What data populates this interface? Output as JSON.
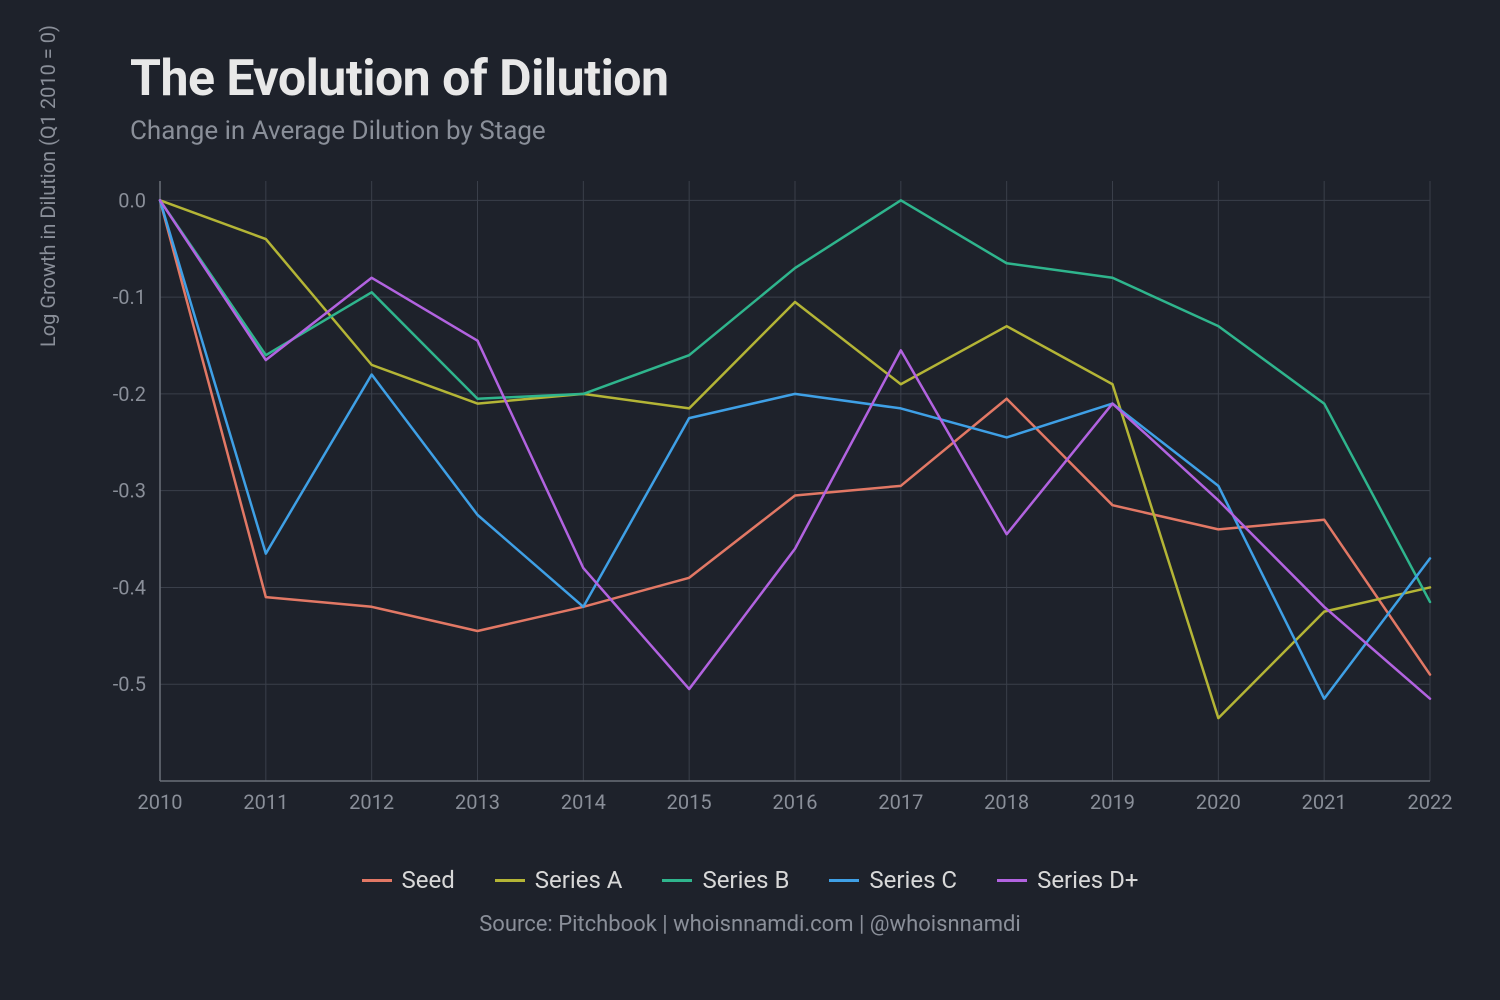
{
  "chart": {
    "title": "The Evolution of Dilution",
    "subtitle": "Change in Average Dilution by Stage",
    "y_axis_label": "Log Growth in Dilution (Q1 2010 = 0)",
    "source_note": "Source: Pitchbook | whoisnnamdi.com | @whoisnnamdi",
    "type": "line",
    "background_color": "#1e222b",
    "grid_color": "#3a3f4a",
    "axis_color": "#6a6f79",
    "tick_label_color": "#8a8f99",
    "title_color": "#e8e8e8",
    "subtitle_color": "#8a8f99",
    "legend_text_color": "#d8d8d8",
    "title_fontsize": 50,
    "subtitle_fontsize": 26,
    "axis_label_fontsize": 20,
    "tick_fontsize": 20,
    "legend_fontsize": 24,
    "line_width": 2.5,
    "x": {
      "ticks": [
        2010,
        2011,
        2012,
        2013,
        2014,
        2015,
        2016,
        2017,
        2018,
        2019,
        2020,
        2021,
        2022
      ],
      "min": 2010,
      "max": 2022
    },
    "y": {
      "ticks": [
        0.0,
        -0.1,
        -0.2,
        -0.3,
        -0.4,
        -0.5
      ],
      "min": -0.6,
      "max": 0.02
    },
    "series": [
      {
        "name": "Seed",
        "color": "#e27865",
        "values": [
          0.0,
          -0.41,
          -0.42,
          -0.445,
          -0.42,
          -0.39,
          -0.305,
          -0.295,
          -0.205,
          -0.315,
          -0.34,
          -0.33,
          -0.49
        ]
      },
      {
        "name": "Series A",
        "color": "#b4b536",
        "values": [
          0.0,
          -0.04,
          -0.17,
          -0.21,
          -0.2,
          -0.215,
          -0.105,
          -0.19,
          -0.13,
          -0.19,
          -0.535,
          -0.425,
          -0.4
        ]
      },
      {
        "name": "Series B",
        "color": "#2fb58d",
        "values": [
          0.0,
          -0.16,
          -0.095,
          -0.205,
          -0.2,
          -0.16,
          -0.07,
          0.0,
          -0.065,
          -0.08,
          -0.13,
          -0.21,
          -0.415
        ]
      },
      {
        "name": "Series C",
        "color": "#3fa0e6",
        "values": [
          0.0,
          -0.365,
          -0.18,
          -0.325,
          -0.42,
          -0.225,
          -0.2,
          -0.215,
          -0.245,
          -0.21,
          -0.295,
          -0.515,
          -0.37
        ]
      },
      {
        "name": "Series D+",
        "color": "#b263e0",
        "values": [
          0.0,
          -0.165,
          -0.08,
          -0.145,
          -0.38,
          -0.505,
          -0.36,
          -0.155,
          -0.345,
          -0.21,
          -0.31,
          -0.42,
          -0.515
        ]
      }
    ]
  }
}
